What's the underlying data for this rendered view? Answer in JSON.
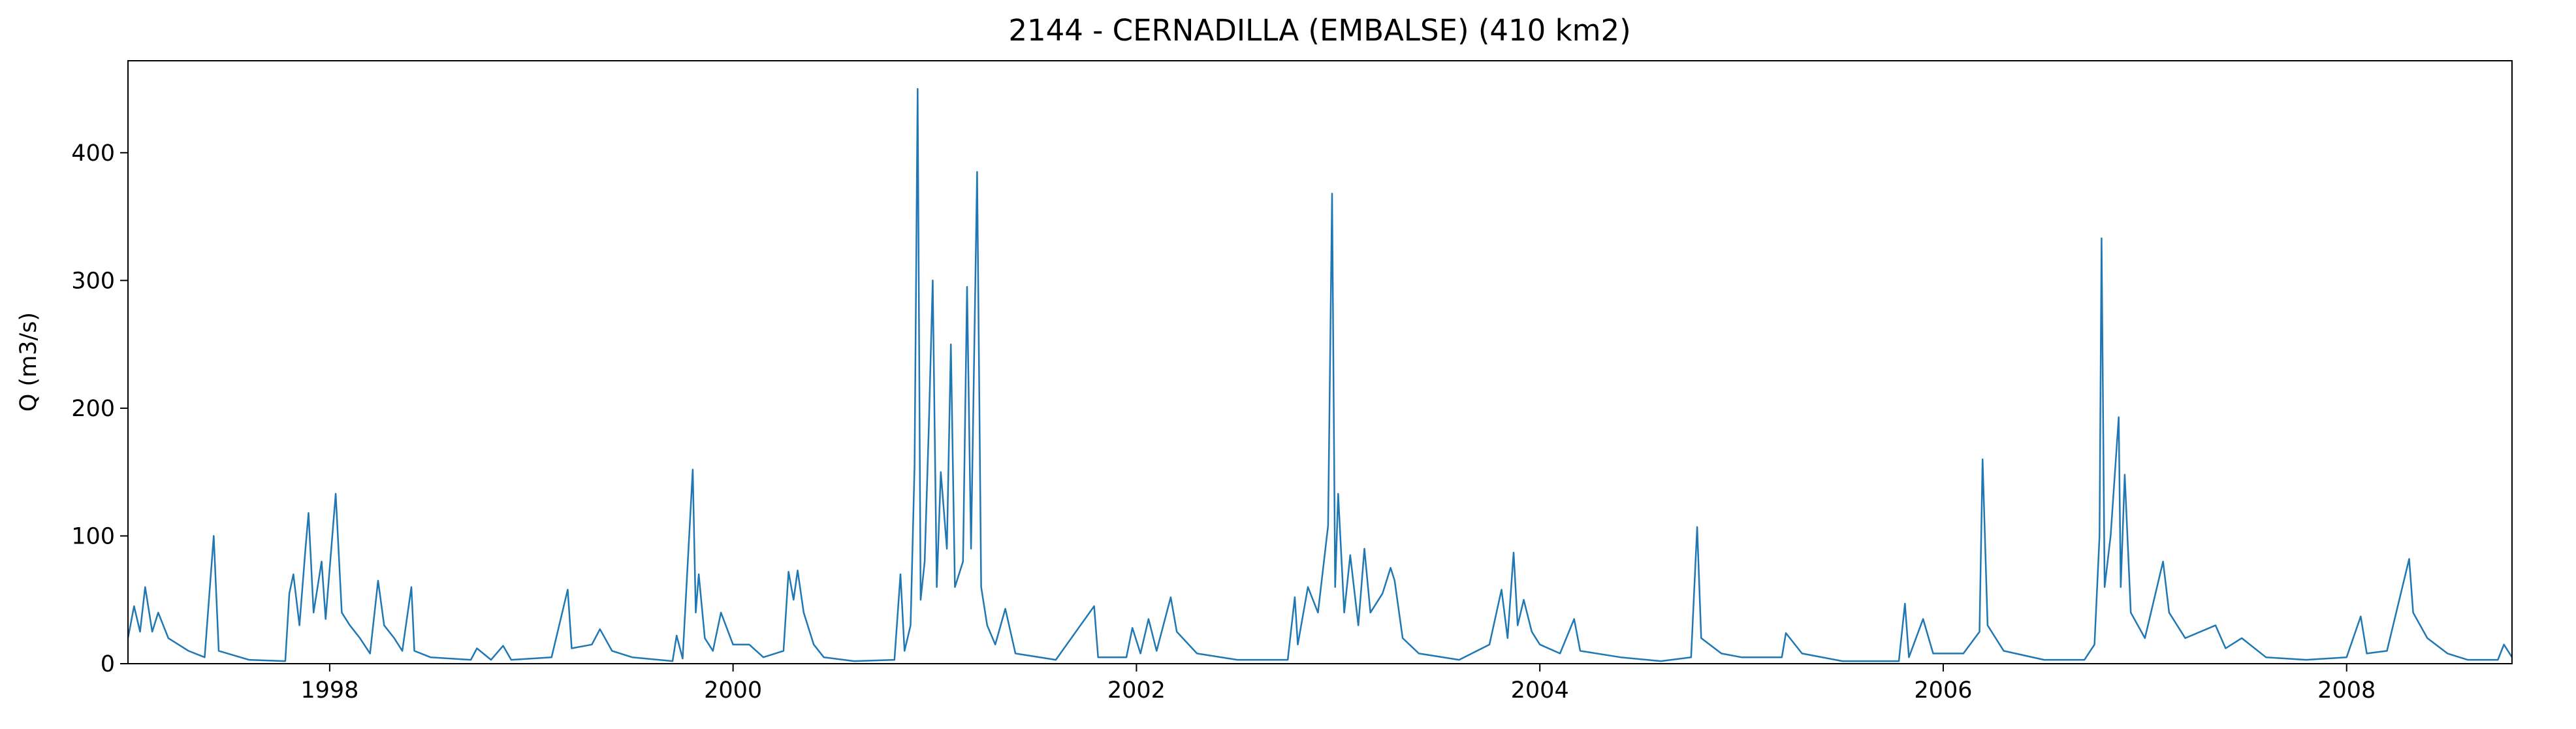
{
  "chart_data": {
    "type": "line",
    "title": "2144 - CERNADILLA (EMBALSE) (410 km2)",
    "y_label": "Q (m3/s)",
    "color": "#1f77b4",
    "x": [
      1997.0,
      1997.03,
      1997.06,
      1997.085,
      1997.12,
      1997.15,
      1997.2,
      1997.3,
      1997.38,
      1997.425,
      1997.45,
      1997.6,
      1997.78,
      1997.8,
      1997.82,
      1997.85,
      1997.88,
      1997.895,
      1997.92,
      1997.96,
      1997.98,
      1998.03,
      1998.06,
      1998.1,
      1998.15,
      1998.2,
      1998.24,
      1998.27,
      1998.32,
      1998.36,
      1998.405,
      1998.42,
      1998.5,
      1998.7,
      1998.73,
      1998.8,
      1998.86,
      1998.9,
      1999.1,
      1999.18,
      1999.2,
      1999.3,
      1999.34,
      1999.4,
      1999.5,
      1999.7,
      1999.72,
      1999.75,
      1999.8,
      1999.815,
      1999.83,
      1999.86,
      1999.9,
      1999.94,
      2000.0,
      2000.08,
      2000.15,
      2000.25,
      2000.275,
      2000.3,
      2000.32,
      2000.35,
      2000.4,
      2000.45,
      2000.6,
      2000.8,
      2000.83,
      2000.85,
      2000.88,
      2000.9,
      2000.915,
      2000.93,
      2000.95,
      2000.97,
      2000.99,
      2001.01,
      2001.03,
      2001.06,
      2001.08,
      2001.1,
      2001.14,
      2001.16,
      2001.18,
      2001.21,
      2001.23,
      2001.26,
      2001.3,
      2001.35,
      2001.4,
      2001.6,
      2001.79,
      2001.81,
      2001.95,
      2001.98,
      2002.02,
      2002.06,
      2002.1,
      2002.17,
      2002.2,
      2002.3,
      2002.5,
      2002.75,
      2002.785,
      2002.8,
      2002.85,
      2002.9,
      2002.95,
      2002.97,
      2002.985,
      2003.0,
      2003.03,
      2003.06,
      2003.1,
      2003.13,
      2003.16,
      2003.22,
      2003.26,
      2003.28,
      2003.32,
      2003.4,
      2003.6,
      2003.75,
      2003.81,
      2003.84,
      2003.87,
      2003.89,
      2003.92,
      2003.96,
      2004.0,
      2004.1,
      2004.17,
      2004.2,
      2004.4,
      2004.6,
      2004.75,
      2004.78,
      2004.8,
      2004.9,
      2005.0,
      2005.2,
      2005.22,
      2005.3,
      2005.5,
      2005.78,
      2005.81,
      2005.83,
      2005.9,
      2005.95,
      2006.1,
      2006.18,
      2006.195,
      2006.22,
      2006.3,
      2006.5,
      2006.7,
      2006.75,
      2006.775,
      2006.785,
      2006.8,
      2006.83,
      2006.87,
      2006.88,
      2006.9,
      2006.93,
      2007.0,
      2007.09,
      2007.12,
      2007.2,
      2007.35,
      2007.4,
      2007.48,
      2007.6,
      2007.8,
      2008.0,
      2008.07,
      2008.1,
      2008.2,
      2008.31,
      2008.33,
      2008.4,
      2008.5,
      2008.6,
      2008.75,
      2008.78,
      2008.82
    ],
    "values": [
      20,
      45,
      25,
      60,
      25,
      40,
      20,
      10,
      5,
      100,
      10,
      3,
      2,
      55,
      70,
      30,
      90,
      118,
      40,
      80,
      35,
      133,
      40,
      30,
      20,
      8,
      65,
      30,
      20,
      10,
      60,
      10,
      5,
      3,
      12,
      3,
      14,
      3,
      5,
      58,
      12,
      15,
      27,
      10,
      5,
      2,
      22,
      4,
      152,
      40,
      70,
      20,
      10,
      40,
      15,
      15,
      5,
      10,
      72,
      50,
      73,
      40,
      15,
      5,
      2,
      3,
      70,
      10,
      30,
      155,
      450,
      50,
      80,
      183,
      300,
      60,
      150,
      90,
      250,
      60,
      80,
      295,
      90,
      385,
      60,
      30,
      15,
      43,
      8,
      3,
      45,
      5,
      5,
      28,
      8,
      35,
      10,
      52,
      25,
      8,
      3,
      3,
      52,
      15,
      60,
      40,
      108,
      368,
      60,
      133,
      40,
      85,
      30,
      90,
      40,
      55,
      75,
      65,
      20,
      8,
      3,
      15,
      58,
      20,
      87,
      30,
      50,
      25,
      15,
      8,
      35,
      10,
      5,
      2,
      5,
      107,
      20,
      8,
      5,
      5,
      24,
      8,
      2,
      2,
      47,
      5,
      35,
      8,
      8,
      25,
      160,
      30,
      10,
      3,
      3,
      15,
      100,
      333,
      60,
      100,
      193,
      60,
      148,
      40,
      20,
      80,
      40,
      20,
      30,
      12,
      20,
      5,
      3,
      5,
      37,
      8,
      10,
      82,
      40,
      20,
      8,
      3,
      3,
      15,
      5
    ],
    "xlim": [
      1997.0,
      2008.82
    ],
    "xticks": [
      1998,
      2000,
      2002,
      2004,
      2006,
      2008
    ],
    "ylim": [
      0,
      472
    ],
    "yticks": [
      0,
      100,
      200,
      300,
      400
    ]
  }
}
